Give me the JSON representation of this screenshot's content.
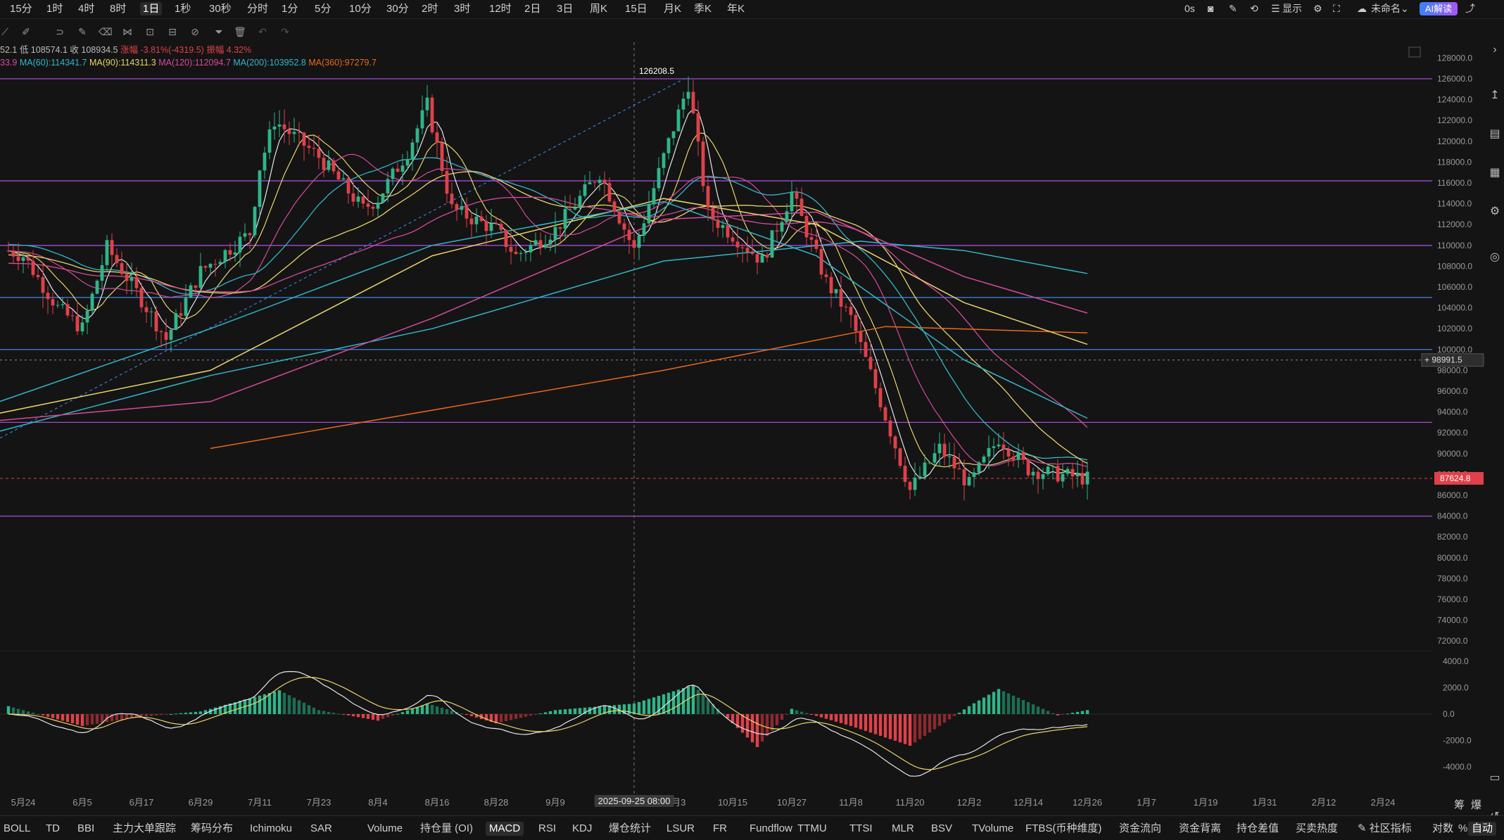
{
  "timeframes": [
    "15分",
    "1时",
    "4时",
    "8时",
    "1日",
    "1秒",
    "30秒",
    "分时",
    "1分",
    "5分",
    "10分",
    "30分",
    "2时",
    "3时",
    "12时",
    "2日",
    "3日",
    "周K",
    "15日",
    "月K",
    "季K",
    "年K"
  ],
  "active_timeframe": "1日",
  "topbar_right": {
    "countdown": "0s",
    "display_label": "显示",
    "unnamed_label": "未命名",
    "ai_label": "AI解读"
  },
  "ohlc_line": {
    "high_partial": "52.1",
    "low": "低 108574.1",
    "close": "收 108934.5",
    "change": "涨幅 -3.81%(-4319.5)",
    "amplitude": "振幅 4.32%"
  },
  "ma_line": {
    "ma_first_partial": "33.9",
    "ma60": "MA(60):114341.7",
    "ma90": "MA(90):114311.3",
    "ma120": "MA(120):112094.7",
    "ma200": "MA(200):103952.8",
    "ma360": "MA(360):97279.7"
  },
  "colors": {
    "up": "#2fb58a",
    "down": "#e0414a",
    "ma_short": "#e6e6e6",
    "ma_mid": "#e9d46a",
    "ma60": "#33b6c9",
    "ma90": "#e9d46a",
    "ma120": "#d64a9c",
    "ma200": "#33b6c9",
    "ma360": "#e86a1c",
    "level_line": "#a24bd8",
    "level_blue": "#3a7bd5"
  },
  "chart_data": {
    "type": "candlestick",
    "symbol_period": "1日",
    "y_ticks_price": [
      "128000.0",
      "126000.0",
      "124000.0",
      "122000.0",
      "120000.0",
      "118000.0",
      "116000.0",
      "114000.0",
      "112000.0",
      "110000.0",
      "108000.0",
      "106000.0",
      "104000.0",
      "102000.0",
      "100000.0",
      "98000.0",
      "96000.0",
      "94000.0",
      "92000.0",
      "90000.0",
      "88000.0",
      "86000.0",
      "84000.0",
      "82000.0",
      "80000.0",
      "78000.0",
      "76000.0",
      "74000.0",
      "72000.0"
    ],
    "y_ticks_macd": [
      "4000.0",
      "2000.0",
      "0.0",
      "-2000.0",
      "-4000.0"
    ],
    "ylim": [
      71000,
      128500
    ],
    "macd_ylim": [
      -4800,
      4600
    ],
    "x_ticks": [
      "5月24",
      "6月5",
      "6月17",
      "6月29",
      "7月11",
      "7月23",
      "8月4",
      "8月16",
      "8月28",
      "9月9",
      "10月3",
      "10月15",
      "10月27",
      "11月8",
      "11月20",
      "12月2",
      "12月14",
      "12月26",
      "1月7",
      "1月19",
      "1月31",
      "2月12",
      "2月24"
    ],
    "x_tick_dates": [
      "2025-05-24",
      "2025-06-05",
      "2025-06-17",
      "2025-06-29",
      "2025-07-11",
      "2025-07-23",
      "2025-08-04",
      "2025-08-16",
      "2025-08-28",
      "2025-09-09",
      "2025-10-03",
      "2025-10-15",
      "2025-10-27",
      "2025-11-08",
      "2025-11-20",
      "2025-12-02",
      "2025-12-14",
      "2025-12-26",
      "2026-01-07",
      "2026-01-19",
      "2026-01-31",
      "2026-02-12",
      "2026-02-24"
    ],
    "cursor_date": "2025-09-25 08:00",
    "peak_label": "126208.5",
    "current_price": "87624.8",
    "crosshair_price": "98991.5",
    "horizontal_levels": [
      126000,
      116200,
      110000,
      105000,
      100000,
      93000,
      84000
    ],
    "closes_anchor": [
      [
        "2025-05-21",
        109500
      ],
      [
        "2025-05-24",
        109000
      ],
      [
        "2025-05-31",
        104000
      ],
      [
        "2025-06-05",
        102000
      ],
      [
        "2025-06-10",
        109800
      ],
      [
        "2025-06-17",
        104800
      ],
      [
        "2025-06-22",
        101000
      ],
      [
        "2025-06-29",
        107500
      ],
      [
        "2025-07-09",
        111200
      ],
      [
        "2025-07-11",
        117500
      ],
      [
        "2025-07-14",
        122000
      ],
      [
        "2025-07-23",
        118500
      ],
      [
        "2025-08-01",
        113500
      ],
      [
        "2025-08-04",
        114500
      ],
      [
        "2025-08-10",
        119000
      ],
      [
        "2025-08-14",
        123500
      ],
      [
        "2025-08-19",
        113500
      ],
      [
        "2025-08-28",
        111500
      ],
      [
        "2025-09-01",
        109000
      ],
      [
        "2025-09-09",
        111500
      ],
      [
        "2025-09-18",
        117000
      ],
      [
        "2025-09-25",
        109500
      ],
      [
        "2025-10-01",
        118500
      ],
      [
        "2025-10-06",
        125500
      ],
      [
        "2025-10-10",
        113000
      ],
      [
        "2025-10-15",
        111000
      ],
      [
        "2025-10-21",
        108500
      ],
      [
        "2025-10-27",
        115000
      ],
      [
        "2025-11-03",
        106500
      ],
      [
        "2025-11-08",
        103000
      ],
      [
        "2025-11-14",
        95000
      ],
      [
        "2025-11-20",
        86500
      ],
      [
        "2025-11-26",
        90500
      ],
      [
        "2025-12-02",
        87000
      ],
      [
        "2025-12-08",
        91500
      ],
      [
        "2025-12-14",
        88500
      ],
      [
        "2025-12-20",
        88000
      ],
      [
        "2025-12-26",
        87600
      ]
    ],
    "ma360_end": [
      [
        "2025-07-01",
        90500
      ],
      [
        "2025-10-01",
        98000
      ],
      [
        "2025-11-15",
        102200
      ],
      [
        "2025-12-26",
        101600
      ]
    ],
    "macd_anchor": [
      [
        "2025-05-21",
        600
      ],
      [
        "2025-06-05",
        -900
      ],
      [
        "2025-06-17",
        -200
      ],
      [
        "2025-06-29",
        200
      ],
      [
        "2025-07-15",
        1800
      ],
      [
        "2025-07-23",
        300
      ],
      [
        "2025-08-04",
        -500
      ],
      [
        "2025-08-14",
        800
      ],
      [
        "2025-08-28",
        -700
      ],
      [
        "2025-09-09",
        300
      ],
      [
        "2025-09-25",
        800
      ],
      [
        "2025-10-07",
        2200
      ],
      [
        "2025-10-20",
        -2500
      ],
      [
        "2025-10-27",
        400
      ],
      [
        "2025-11-08",
        -900
      ],
      [
        "2025-11-20",
        -2400
      ],
      [
        "2025-12-02",
        600
      ],
      [
        "2025-12-08",
        1900
      ],
      [
        "2025-12-14",
        900
      ],
      [
        "2025-12-20",
        -100
      ],
      [
        "2025-12-26",
        300
      ]
    ]
  },
  "bottom_indicators": [
    "BOLL",
    "TD",
    "BBI",
    "主力大单跟踪",
    "筹码分布",
    "Ichimoku",
    "SAR",
    "Volume",
    "持仓量 (OI)",
    "MACD",
    "RSI",
    "KDJ",
    "爆仓统计",
    "LSUR",
    "FR",
    "Fundflow",
    "TTMU",
    "TTSI",
    "MLR",
    "BSV",
    "TVolume",
    "FTBS(币种维度)",
    "资金流向",
    "资金背离",
    "持仓差值",
    "买卖热度"
  ],
  "active_indicator": "MACD",
  "bottom_right": {
    "community": "社区指标",
    "log": "对数",
    "percent": "%",
    "auto": "自动"
  },
  "corner_labels": [
    "筹",
    "爆"
  ]
}
